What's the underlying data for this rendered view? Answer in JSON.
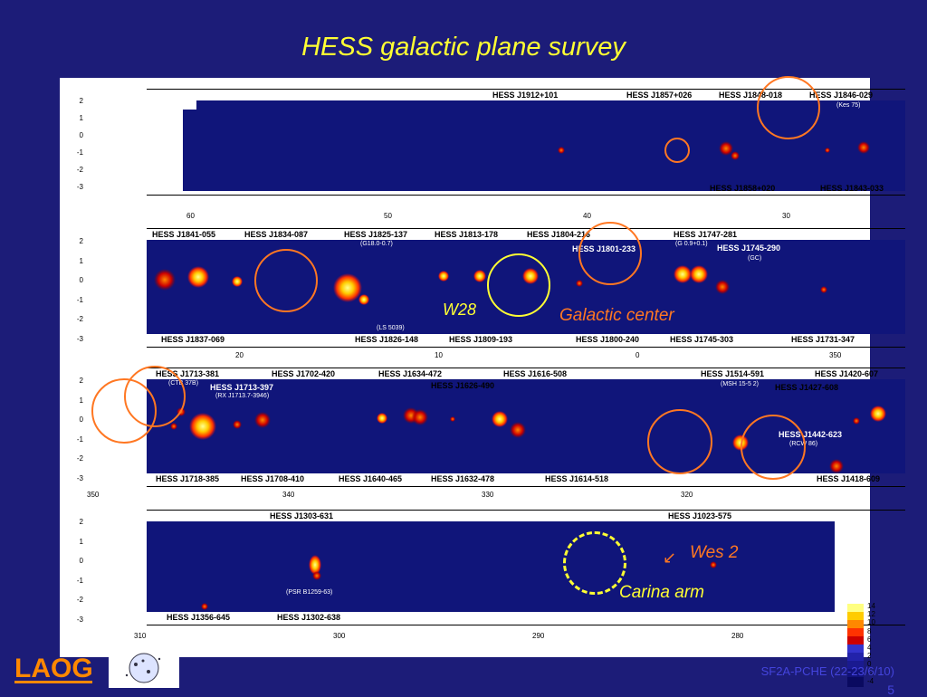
{
  "slide": {
    "title": "HESS galactic plane survey",
    "footer": "SF2A-PCHE (22-23/6/10)",
    "page_number": "5"
  },
  "colors": {
    "background": "#1c1c78",
    "title": "#ffff33",
    "footer": "#4444dd",
    "ring_orange": "#ff7722",
    "ring_yellow": "#ffff33"
  },
  "strips": [
    {
      "y_ticks": [
        "2",
        "1",
        "0",
        "-1",
        "-2",
        "-3"
      ],
      "x_ticks": [
        "60",
        "50",
        "40",
        "30"
      ],
      "top_labels": [
        "HESS J1912+101",
        "HESS J1857+026",
        "HESS J1848-018",
        "HESS J1846-029"
      ],
      "bottom_labels": [
        "HESS J1858+020",
        "HESS J1843-033"
      ],
      "notes": [
        "(Kes 75)"
      ]
    },
    {
      "y_ticks": [
        "2",
        "1",
        "0",
        "-1",
        "-2",
        "-3"
      ],
      "x_ticks": [
        "20",
        "10",
        "0",
        "350"
      ],
      "top_labels": [
        "HESS J1841-055",
        "HESS J1834-087",
        "HESS J1825-137",
        "HESS J1813-178",
        "HESS J1804-216",
        "HESS J1747-281"
      ],
      "inner_labels": [
        "HESS J1801-233",
        "HESS J1745-290"
      ],
      "bottom_labels": [
        "HESS J1837-069",
        "HESS J1826-148",
        "HESS J1809-193",
        "HESS J1800-240",
        "HESS J1745-303",
        "HESS J1731-347"
      ],
      "notes": [
        "(G18.0-0.7)",
        "(G 0.9+0.1)",
        "(GC)",
        "(LS 5039)"
      ]
    },
    {
      "y_ticks": [
        "2",
        "1",
        "0",
        "-1",
        "-2",
        "-3"
      ],
      "x_ticks": [
        "350",
        "340",
        "330",
        "320"
      ],
      "top_labels": [
        "HESS J1713-381",
        "HESS J1702-420",
        "HESS J1634-472",
        "HESS J1616-508",
        "HESS J1514-591",
        "HESS J1420-607"
      ],
      "inner_labels": [
        "HESS J1713-397",
        "HESS J1626-490",
        "HESS J1427-608",
        "HESS J1442-623"
      ],
      "bottom_labels": [
        "HESS J1718-385",
        "HESS J1708-410",
        "HESS J1640-465",
        "HESS J1632-478",
        "HESS J1614-518",
        "HESS J1418-609"
      ],
      "notes": [
        "(CTB 37B)",
        "(RX J1713.7-3946)",
        "(MSH 15-5 2)",
        "(RCW 86)"
      ]
    },
    {
      "y_ticks": [
        "2",
        "1",
        "0",
        "-1",
        "-2",
        "-3"
      ],
      "x_ticks": [
        "310",
        "300",
        "290",
        "280"
      ],
      "top_labels": [
        "HESS J1303-631",
        "HESS J1023-575"
      ],
      "bottom_labels": [
        "HESS J1356-645",
        "HESS J1302-638"
      ],
      "notes": [
        "(PSR B1259-63)"
      ]
    }
  ],
  "annotations": {
    "w28": "W28",
    "galactic_center": "Galactic center",
    "wes2": "Wes 2",
    "carina": "Carina arm"
  },
  "colorbar": [
    "14",
    "12",
    "10",
    "8",
    "6",
    "4",
    "2",
    "0",
    "-2",
    "-4"
  ]
}
